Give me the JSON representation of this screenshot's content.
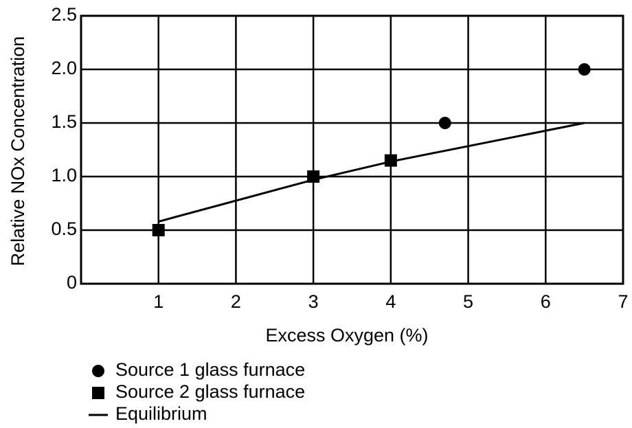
{
  "chart_data": {
    "type": "scatter",
    "x_label": "Excess Oxygen (%)",
    "y_label": "Relative NOx Concentration",
    "xlim": [
      0,
      7
    ],
    "xticks": [
      1,
      2,
      3,
      4,
      5,
      6,
      7
    ],
    "ylim": [
      0,
      2.5
    ],
    "yticks": [
      0,
      0.5,
      {
        "value": 1,
        "label": "1.0"
      },
      1.5,
      {
        "value": 2,
        "label": "2.0"
      },
      2.5
    ],
    "grid": true,
    "legend": "bottom-left",
    "series": [
      {
        "name": "Source 1 glass furnace",
        "color": "#000000",
        "marker": "circle",
        "x": [
          4.7,
          6.5
        ],
        "values": [
          1.5,
          2.0
        ]
      },
      {
        "name": "Source 2 glass furnace",
        "color": "#000000",
        "marker": "square",
        "x": [
          1,
          3,
          4
        ],
        "values": [
          0.5,
          1.0,
          1.15
        ]
      },
      {
        "name": "Equilibrium",
        "color": "#000000",
        "marker": "line",
        "x": [
          1,
          3,
          4,
          6.5
        ],
        "values": [
          0.58,
          0.97,
          1.14,
          1.5
        ]
      }
    ]
  }
}
